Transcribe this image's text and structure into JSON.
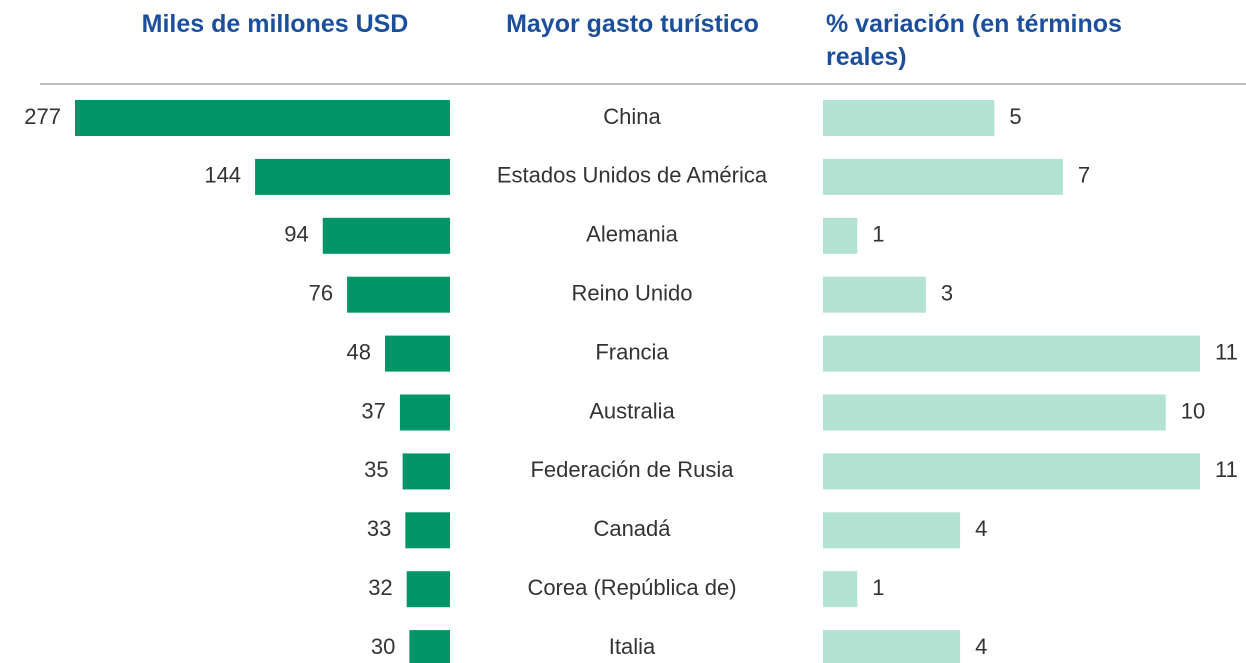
{
  "chart_data": {
    "type": "bar",
    "category_label": "Mayor gasto turístico",
    "categories": [
      "China",
      "Estados Unidos de América",
      "Alemania",
      "Reino Unido",
      "Francia",
      "Australia",
      "Federación de Rusia",
      "Canadá",
      "Corea (República de)",
      "Italia"
    ],
    "series": [
      {
        "name": "Miles de millones USD",
        "color": "#009566",
        "values": [
          277,
          144,
          94,
          76,
          48,
          37,
          35,
          33,
          32,
          30
        ]
      },
      {
        "name": "% variación (en términos reales)",
        "color": "#b2e2d2",
        "values": [
          5,
          7,
          1,
          3,
          11,
          10,
          11,
          4,
          1,
          4
        ]
      }
    ]
  }
}
